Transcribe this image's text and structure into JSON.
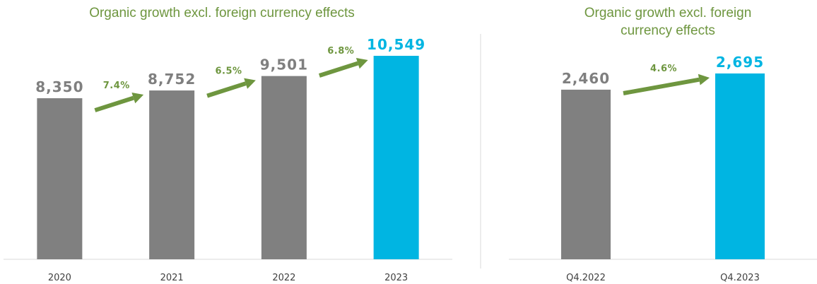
{
  "colors": {
    "past_bar": "#808080",
    "current_bar": "#00b5e2",
    "growth": "#6e963f",
    "axis": "#d9d9d9",
    "tick_text": "#404040",
    "past_value_text": "#7f7f7f"
  },
  "chart_data": [
    {
      "type": "bar",
      "title": "Organic growth excl. foreign currency effects",
      "categories": [
        "2020",
        "2021",
        "2022",
        "2023"
      ],
      "values": [
        8350,
        8752,
        9501,
        10549
      ],
      "value_labels": [
        "8,350",
        "8,752",
        "9,501",
        "10,549"
      ],
      "highlight_index": 3,
      "growth": [
        {
          "from": 0,
          "to": 1,
          "label": "7.4%"
        },
        {
          "from": 1,
          "to": 2,
          "label": "6.5%"
        },
        {
          "from": 2,
          "to": 3,
          "label": "6.8%"
        }
      ],
      "ylim": [
        0,
        10549
      ],
      "grid": false,
      "legend": "none"
    },
    {
      "type": "bar",
      "title": "Organic growth excl. foreign currency effects",
      "title_lines": [
        "Organic growth excl. foreign",
        "currency effects"
      ],
      "categories": [
        "Q4.2022",
        "Q4.2023"
      ],
      "values": [
        2460,
        2695
      ],
      "value_labels": [
        "2,460",
        "2,695"
      ],
      "highlight_index": 1,
      "growth": [
        {
          "from": 0,
          "to": 1,
          "label": "4.6%"
        }
      ],
      "ylim": [
        0,
        2695
      ],
      "grid": false,
      "legend": "none"
    }
  ]
}
